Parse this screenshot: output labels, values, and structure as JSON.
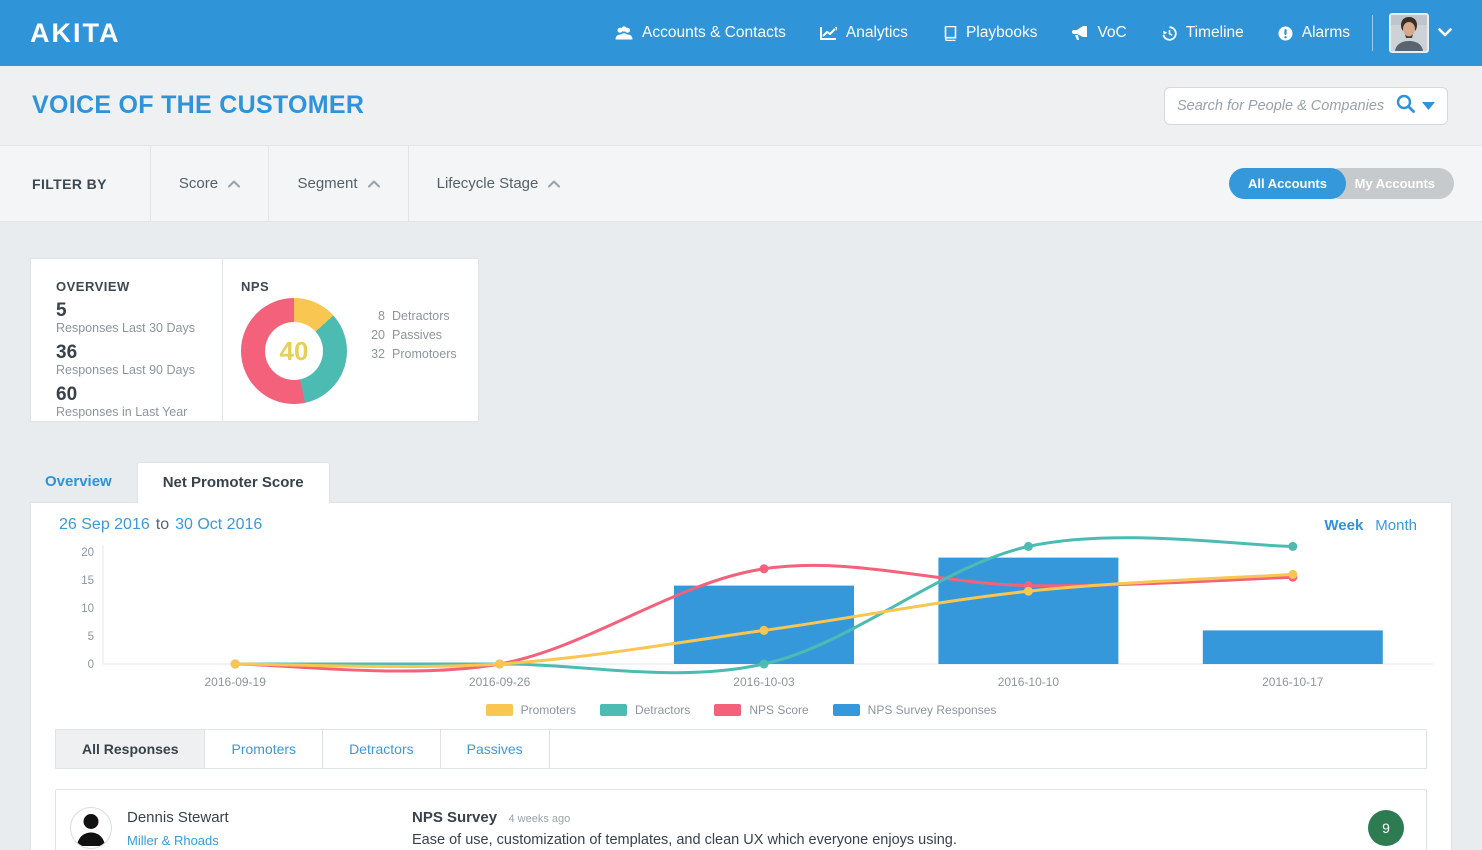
{
  "brand": {
    "logo": "AKITA"
  },
  "nav": {
    "items": [
      {
        "label": "Accounts & Contacts",
        "icon": "users"
      },
      {
        "label": "Analytics",
        "icon": "chart-line"
      },
      {
        "label": "Playbooks",
        "icon": "book"
      },
      {
        "label": "VoC",
        "icon": "megaphone"
      },
      {
        "label": "Timeline",
        "icon": "history"
      },
      {
        "label": "Alarms",
        "icon": "alarm"
      }
    ]
  },
  "header": {
    "title": "VOICE OF THE CUSTOMER",
    "search_placeholder": "Search for People & Companies"
  },
  "filter_bar": {
    "label": "FILTER BY",
    "filters": [
      {
        "label": "Score"
      },
      {
        "label": "Segment"
      },
      {
        "label": "Lifecycle Stage"
      }
    ],
    "toggle": {
      "all": "All Accounts",
      "my": "My Accounts",
      "selected": "All Accounts"
    }
  },
  "overview_card": {
    "title": "OVERVIEW",
    "stats": [
      {
        "value": "5",
        "label": "Responses Last 30 Days"
      },
      {
        "value": "36",
        "label": "Responses Last 90 Days"
      },
      {
        "value": "60",
        "label": "Responses in Last Year"
      }
    ]
  },
  "nps_card": {
    "title": "NPS",
    "score": "40",
    "score_color": "#e5d05b",
    "slices": [
      {
        "label": "Detractors",
        "value": 8,
        "color": "#f8c651"
      },
      {
        "label": "Passives",
        "value": 20,
        "color": "#4cbcb2"
      },
      {
        "label": "Promotoers",
        "value": 32,
        "color": "#f3617b"
      }
    ],
    "legend": [
      {
        "value": "8",
        "label": "Detractors"
      },
      {
        "value": "20",
        "label": "Passives"
      },
      {
        "value": "32",
        "label": "Promotoers"
      }
    ]
  },
  "tabs": {
    "overview": "Overview",
    "nps": "Net Promoter Score",
    "active": "Net Promoter Score"
  },
  "panel": {
    "date_from": "26 Sep 2016",
    "date_word": "to",
    "date_to": "30 Oct 2016",
    "week": "Week",
    "month": "Month",
    "selected_range": "Week"
  },
  "chart_data": {
    "type": "bar",
    "x": [
      "2016-09-19",
      "2016-09-26",
      "2016-10-03",
      "2016-10-10",
      "2016-10-17"
    ],
    "series": [
      {
        "name": "Promoters",
        "type": "line",
        "color": "#f8c651",
        "values": [
          0,
          0,
          6,
          13,
          16
        ]
      },
      {
        "name": "Detractors",
        "type": "line",
        "color": "#4cbcb2",
        "values": [
          0,
          0,
          0,
          21,
          21
        ]
      },
      {
        "name": "NPS Score",
        "type": "line",
        "color": "#f3617b",
        "values": [
          0,
          0,
          17,
          14,
          15.5
        ]
      },
      {
        "name": "NPS Survey Responses",
        "type": "bar",
        "color": "#3598db",
        "values": [
          0,
          0,
          14,
          19,
          6
        ]
      }
    ],
    "title": "",
    "xlabel": "",
    "ylabel": "",
    "ylim": [
      0,
      20
    ],
    "yticks": [
      0,
      5,
      10,
      15,
      20
    ],
    "grid": false,
    "legend_position": "bottom"
  },
  "responses": {
    "tabs": [
      {
        "label": "All Responses",
        "active": true
      },
      {
        "label": "Promoters",
        "active": false
      },
      {
        "label": "Detractors",
        "active": false
      },
      {
        "label": "Passives",
        "active": false
      }
    ],
    "items": [
      {
        "name": "Dennis Stewart",
        "company": "Miller & Rhoads",
        "survey": "NPS Survey",
        "time": "4 weeks ago",
        "comment": "Ease of use, customization of templates, and clean UX which everyone enjoys using.",
        "score": "9",
        "score_color": "#2c7b51"
      }
    ]
  },
  "colors": {
    "navbar": "#3094d9",
    "accent_blue": "#2e93d9",
    "link_blue": "#3a9ad9",
    "bar_blue": "#3598db",
    "pink": "#f3617b",
    "teal": "#4cbcb2",
    "yellow": "#f8c651",
    "badge_green": "#2c7b51",
    "page_bg": "#e9ecee"
  }
}
